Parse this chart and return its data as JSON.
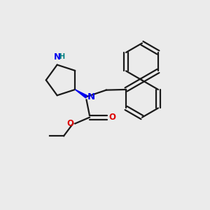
{
  "bg_color": "#ebebeb",
  "bond_color": "#1a1a1a",
  "N_color": "#0000ee",
  "O_color": "#dd0000",
  "H_color": "#008080",
  "line_width": 1.6,
  "figsize": [
    3.0,
    3.0
  ],
  "dpi": 100,
  "xlim": [
    0,
    10
  ],
  "ylim": [
    0,
    10
  ]
}
